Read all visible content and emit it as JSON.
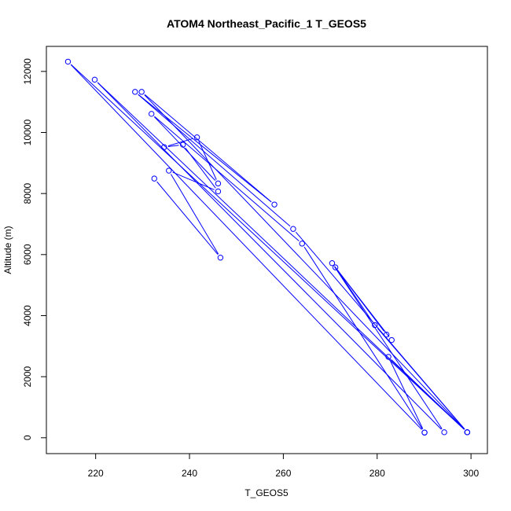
{
  "chart_data": {
    "type": "line",
    "title": "ATOM4 Northeast_Pacific_1 T_GEOS5",
    "xlabel": "T_GEOS5",
    "ylabel": "Altitude (m)",
    "xlim": [
      209.5,
      303.5
    ],
    "ylim": [
      -520,
      12820
    ],
    "xticks": [
      220,
      240,
      260,
      280,
      300
    ],
    "yticks": [
      0,
      2000,
      4000,
      6000,
      8000,
      10000,
      12000
    ],
    "grid": false,
    "legend": "none",
    "color": "#0000ff",
    "series": [
      {
        "points": [
          [
            232.5,
            8490
          ],
          [
            246.6,
            5900
          ],
          [
            235.6,
            8750
          ],
          [
            246.1,
            8070
          ],
          [
            238.6,
            9600
          ],
          [
            234.6,
            9520
          ],
          [
            241.6,
            9840
          ],
          [
            246.1,
            8330
          ],
          [
            231.9,
            10610
          ],
          [
            264.0,
            6360
          ],
          [
            290.1,
            170
          ],
          [
            214.1,
            12320
          ],
          [
            299.2,
            180
          ],
          [
            229.8,
            11330
          ],
          [
            258.1,
            7640
          ],
          [
            228.4,
            11330
          ],
          [
            262.1,
            6840
          ],
          [
            299.2,
            180
          ],
          [
            219.8,
            11730
          ],
          [
            294.3,
            180
          ],
          [
            270.4,
            5720
          ],
          [
            283.1,
            3200
          ],
          [
            282.0,
            3380
          ],
          [
            271.1,
            5580
          ],
          [
            279.5,
            3690
          ],
          [
            299.2,
            180
          ],
          [
            282.4,
            2650
          ],
          [
            290.1,
            170
          ]
        ]
      }
    ]
  }
}
